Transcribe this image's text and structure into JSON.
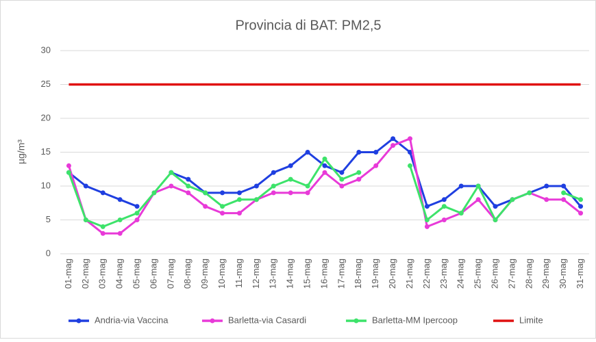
{
  "chart_data": {
    "type": "line",
    "title": "Provincia di BAT: PM2,5",
    "y_label": "µg/m³",
    "categories": [
      "01-mag",
      "02-mag",
      "03-mag",
      "04-mag",
      "05-mag",
      "06-mag",
      "07-mag",
      "08-mag",
      "09-mag",
      "10-mag",
      "11-mag",
      "12-mag",
      "13-mag",
      "14-mag",
      "15-mag",
      "16-mag",
      "17-mag",
      "18-mag",
      "19-mag",
      "20-mag",
      "21-mag",
      "22-mag",
      "23-mag",
      "24-mag",
      "25-mag",
      "26-mag",
      "27-mag",
      "28-mag",
      "29-mag",
      "30-mag",
      "31-mag"
    ],
    "series": [
      {
        "name": "Andria-via Vaccina",
        "color": "#1f3fe0",
        "markers": true,
        "values": [
          12,
          10,
          9,
          8,
          7,
          null,
          12,
          11,
          9,
          9,
          9,
          10,
          12,
          13,
          15,
          13,
          12,
          15,
          15,
          17,
          15,
          7,
          8,
          10,
          10,
          7,
          8,
          9,
          10,
          10,
          7
        ]
      },
      {
        "name": "Barletta-via Casardi",
        "color": "#e83ad8",
        "markers": true,
        "values": [
          13,
          5,
          3,
          3,
          5,
          9,
          10,
          9,
          7,
          6,
          6,
          8,
          9,
          9,
          9,
          12,
          10,
          11,
          13,
          16,
          17,
          4,
          5,
          6,
          8,
          5,
          8,
          9,
          8,
          8,
          6
        ]
      },
      {
        "name": "Barletta-MM Ipercoop",
        "color": "#3de36a",
        "markers": true,
        "values": [
          12,
          5,
          4,
          5,
          6,
          9,
          12,
          10,
          9,
          7,
          8,
          8,
          10,
          11,
          10,
          14,
          11,
          12,
          null,
          null,
          13,
          5,
          7,
          6,
          10,
          5,
          8,
          9,
          null,
          9,
          8
        ]
      },
      {
        "name": "Limite",
        "color": "#e01010",
        "markers": false,
        "values": [
          25,
          25,
          25,
          25,
          25,
          25,
          25,
          25,
          25,
          25,
          25,
          25,
          25,
          25,
          25,
          25,
          25,
          25,
          25,
          25,
          25,
          25,
          25,
          25,
          25,
          25,
          25,
          25,
          25,
          25,
          25
        ]
      }
    ],
    "ylim": [
      0,
      30
    ],
    "yticks": [
      0,
      5,
      10,
      15,
      20,
      25,
      30
    ],
    "grid": true,
    "legend": "bottom"
  }
}
